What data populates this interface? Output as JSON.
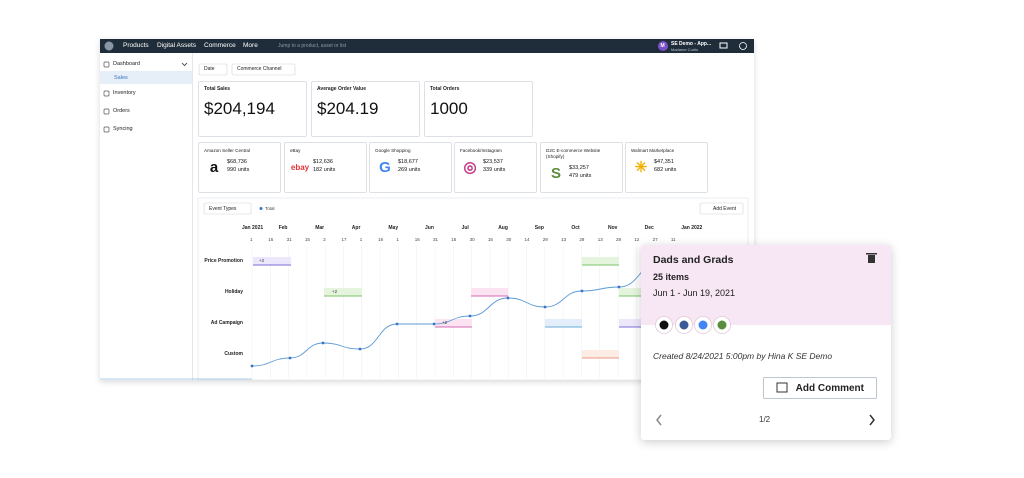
{
  "nav": {
    "items": [
      "Products",
      "Digital Assets",
      "Commerce",
      "More"
    ],
    "search": "Jump to a product, asset or list",
    "avatar": "M",
    "user": "SE Demo - App...",
    "user_sub": "Madame Curtis"
  },
  "sidebar": {
    "items": [
      "Dashboard",
      "Sales",
      "Inventory",
      "Orders",
      "Syncing"
    ]
  },
  "filters": [
    "Date",
    "Commerce Channel"
  ],
  "kpis": [
    {
      "label": "Total Sales",
      "value": "$204,194"
    },
    {
      "label": "Average Order Value",
      "value": "$204.19"
    },
    {
      "label": "Total Orders",
      "value": "1000"
    }
  ],
  "channels": [
    {
      "name": "Amazon Seller Central",
      "logo": "a",
      "amount": "$68,736",
      "units": "990 units"
    },
    {
      "name": "eBay",
      "logo": "ebay",
      "amount": "$12,636",
      "units": "182 units"
    },
    {
      "name": "Google Shopping",
      "logo": "G",
      "amount": "$18,677",
      "units": "269 units"
    },
    {
      "name": "Facebook/Instagram",
      "logo": "◎",
      "amount": "$23,537",
      "units": "339 units"
    },
    {
      "name": "D2C E-commerce Website (Shopify)",
      "logo": "S",
      "amount": "$33,257",
      "units": "479 units"
    },
    {
      "name": "Walmart Marketplace",
      "logo": "✳",
      "amount": "$47,351",
      "units": "682 units"
    }
  ],
  "timeline": {
    "event_types": "Event Types",
    "legend": "Total",
    "add_event": "Add Event",
    "months": [
      "Jan 2021",
      "Feb",
      "Mar",
      "Apr",
      "May",
      "Jun",
      "Jul",
      "Aug",
      "Sep",
      "Oct",
      "Nov",
      "Dec",
      "Jan 2022"
    ],
    "days": [
      "1",
      "16",
      "31",
      "15",
      "2",
      "17",
      "1",
      "16",
      "1",
      "16",
      "31",
      "15",
      "30",
      "15",
      "30",
      "14",
      "29",
      "13",
      "28",
      "13",
      "28",
      "12",
      "27",
      "11"
    ],
    "rows": [
      "Price Promotion",
      "Holiday",
      "Ad Campaign",
      "Custom"
    ],
    "chips": [
      "+2",
      "+2",
      "+2"
    ]
  },
  "popup": {
    "title": "Dads and Grads",
    "items": "25 items",
    "dates": "Jun 1 - Jun 19, 2021",
    "created": "Created 8/24/2021 5:00pm by Hina K SE Demo",
    "button": "Add Comment",
    "pager": "1/2"
  }
}
